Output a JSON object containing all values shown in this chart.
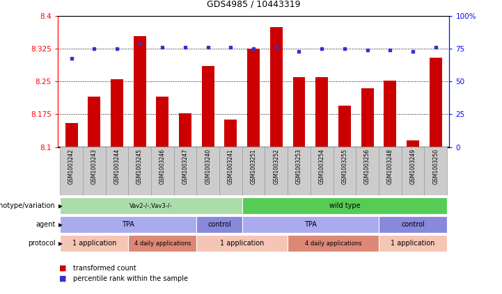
{
  "title": "GDS4985 / 10443319",
  "samples": [
    "GSM1003242",
    "GSM1003243",
    "GSM1003244",
    "GSM1003245",
    "GSM1003246",
    "GSM1003247",
    "GSM1003240",
    "GSM1003241",
    "GSM1003251",
    "GSM1003252",
    "GSM1003253",
    "GSM1003254",
    "GSM1003255",
    "GSM1003256",
    "GSM1003248",
    "GSM1003249",
    "GSM1003250"
  ],
  "red_values": [
    8.155,
    8.215,
    8.255,
    8.355,
    8.215,
    8.178,
    8.285,
    8.163,
    8.325,
    8.375,
    8.26,
    8.26,
    8.195,
    8.235,
    8.252,
    8.115,
    8.305
  ],
  "blue_values": [
    68,
    75,
    75,
    79,
    76,
    76,
    76,
    76,
    75,
    76,
    73,
    75,
    75,
    74,
    74,
    73,
    76
  ],
  "ylim_left": [
    8.1,
    8.4
  ],
  "ylim_right": [
    0,
    100
  ],
  "yticks_left": [
    8.1,
    8.175,
    8.25,
    8.325,
    8.4
  ],
  "yticks_right": [
    0,
    25,
    50,
    75,
    100
  ],
  "hlines": [
    8.175,
    8.25,
    8.325
  ],
  "bar_color": "#cc0000",
  "dot_color": "#3333cc",
  "genotype_segments": [
    {
      "text": "Vav2-/-;Vav3-/-",
      "start": 0,
      "end": 7,
      "color": "#aaddaa"
    },
    {
      "text": "wild type",
      "start": 8,
      "end": 16,
      "color": "#55cc55"
    }
  ],
  "agent_segments": [
    {
      "text": "TPA",
      "start": 0,
      "end": 5,
      "color": "#aaaaee"
    },
    {
      "text": "control",
      "start": 6,
      "end": 7,
      "color": "#8888dd"
    },
    {
      "text": "TPA",
      "start": 8,
      "end": 13,
      "color": "#aaaaee"
    },
    {
      "text": "control",
      "start": 14,
      "end": 16,
      "color": "#8888dd"
    }
  ],
  "protocol_segments": [
    {
      "text": "1 application",
      "start": 0,
      "end": 2,
      "color": "#f5c5b5"
    },
    {
      "text": "4 daily applications",
      "start": 3,
      "end": 5,
      "color": "#dd8877"
    },
    {
      "text": "1 application",
      "start": 6,
      "end": 9,
      "color": "#f5c5b5"
    },
    {
      "text": "4 daily applications",
      "start": 10,
      "end": 13,
      "color": "#dd8877"
    },
    {
      "text": "1 application",
      "start": 14,
      "end": 16,
      "color": "#f5c5b5"
    }
  ],
  "row_labels": [
    "genotype/variation",
    "agent",
    "protocol"
  ],
  "row_keys": [
    "genotype_segments",
    "agent_segments",
    "protocol_segments"
  ]
}
